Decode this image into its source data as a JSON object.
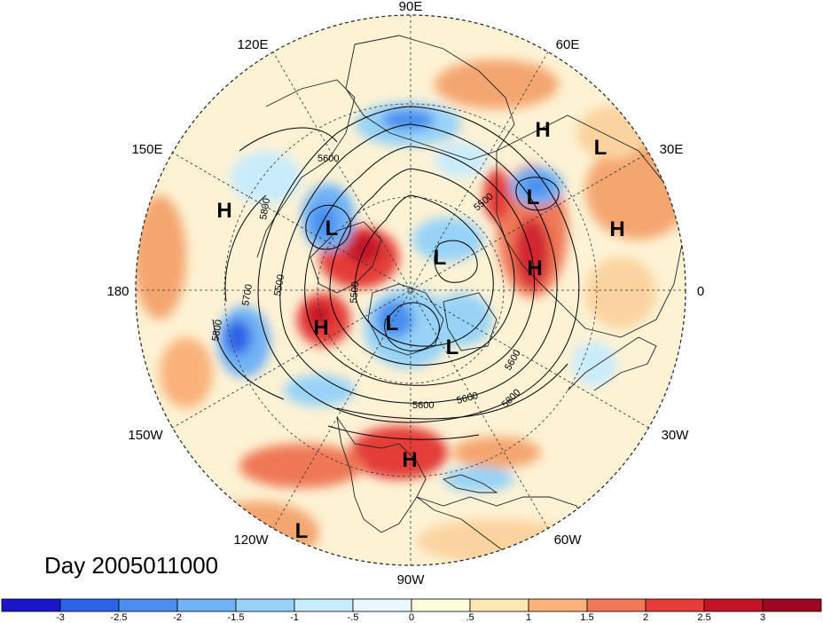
{
  "title": "Day 2005011000",
  "colors": {
    "ocean_base": "#fdf2d4",
    "land_line": "#222222",
    "contour_line": "#000000",
    "grid_line": "#333333"
  },
  "longitude_labels": [
    "90E",
    "60E",
    "30E",
    "0",
    "30W",
    "60W",
    "90W",
    "120W",
    "150W",
    "180",
    "150E",
    "120E"
  ],
  "pressure_centers": [
    {
      "label": "H",
      "id": "h-russia"
    },
    {
      "label": "L",
      "id": "l-asia-east"
    },
    {
      "label": "L",
      "id": "l-scandinavia"
    },
    {
      "label": "H",
      "id": "h-pacific-west"
    },
    {
      "label": "H",
      "id": "h-africa"
    },
    {
      "label": "L",
      "id": "l-okhotsk"
    },
    {
      "label": "L",
      "id": "l-arctic"
    },
    {
      "label": "H",
      "id": "h-europe"
    },
    {
      "label": "H",
      "id": "h-alaska"
    },
    {
      "label": "L",
      "id": "l-canada"
    },
    {
      "label": "L",
      "id": "l-hudson"
    },
    {
      "label": "H",
      "id": "h-us-southeast"
    },
    {
      "label": "L",
      "id": "l-pacific-south"
    }
  ],
  "contour_labels": [
    "5600",
    "5800",
    "5500",
    "5700",
    "5500",
    "5500",
    "5800",
    "5600",
    "5600",
    "5800",
    "5600"
  ],
  "colorbar": {
    "ticks": [
      "-3",
      "-2.5",
      "-2",
      "-1.5",
      "-1",
      "-.5",
      "0",
      ".5",
      "1",
      "1.5",
      "2",
      "2.5",
      "3"
    ],
    "colors": [
      "#1a17c9",
      "#2d63e6",
      "#4a8ff0",
      "#6fb2f5",
      "#97d3f7",
      "#c9ecfb",
      "#e8f8fd",
      "#fffbdc",
      "#fde7b2",
      "#f9b27a",
      "#ef7856",
      "#e43d39",
      "#c4142a",
      "#9c0921"
    ]
  }
}
